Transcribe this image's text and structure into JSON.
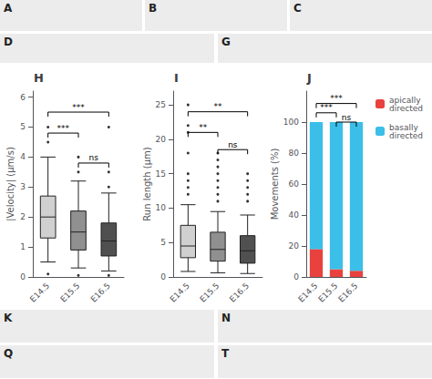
{
  "chart_data": [
    {
      "type": "boxplot",
      "title": "H",
      "ylabel": "|Velocity| (μm/s)",
      "categories": [
        "E14.5",
        "E15.5",
        "E16.5"
      ],
      "boxes": [
        {
          "med": 2.0,
          "q1": 1.3,
          "q3": 2.7,
          "whislo": 0.5,
          "whishi": 4.0,
          "fliers": [
            0.1,
            4.5,
            5.0
          ]
        },
        {
          "med": 1.5,
          "q1": 0.9,
          "q3": 2.2,
          "whislo": 0.3,
          "whishi": 3.2,
          "fliers": [
            0.05,
            3.5,
            4.0
          ]
        },
        {
          "med": 1.2,
          "q1": 0.7,
          "q3": 1.8,
          "whislo": 0.2,
          "whishi": 2.8,
          "fliers": [
            0.05,
            3.0,
            3.5,
            5.0
          ]
        }
      ],
      "colors": [
        "#d0d0d0",
        "#909090",
        "#505050"
      ],
      "ylim": [
        0,
        6.2
      ],
      "yticks": [
        0,
        1,
        2,
        3,
        4,
        5,
        6
      ],
      "grid": false,
      "brackets": [
        {
          "from": "E14.5",
          "to": "E15.5",
          "y": 4.8,
          "text": "***"
        },
        {
          "from": "E14.5",
          "to": "E16.5",
          "y": 5.5,
          "text": "***"
        },
        {
          "from": "E15.5",
          "to": "E16.5",
          "y": 3.8,
          "text": "ns"
        }
      ]
    },
    {
      "type": "boxplot",
      "title": "I",
      "ylabel": "Run length (μm)",
      "categories": [
        "E14.5",
        "E15.5",
        "E16.5"
      ],
      "boxes": [
        {
          "med": 4.5,
          "q1": 2.8,
          "q3": 7.5,
          "whislo": 0.8,
          "whishi": 10.5,
          "fliers": [
            12,
            13,
            14,
            15,
            18,
            21,
            22,
            25
          ]
        },
        {
          "med": 4.0,
          "q1": 2.3,
          "q3": 6.5,
          "whislo": 0.6,
          "whishi": 9.5,
          "fliers": [
            11,
            12,
            13,
            14,
            15,
            16,
            17,
            18
          ]
        },
        {
          "med": 3.8,
          "q1": 2.0,
          "q3": 6.0,
          "whislo": 0.5,
          "whishi": 9.0,
          "fliers": [
            11,
            12,
            13,
            14,
            15
          ]
        }
      ],
      "colors": [
        "#d0d0d0",
        "#909090",
        "#505050"
      ],
      "ylim": [
        0,
        27
      ],
      "yticks": [
        0,
        5,
        10,
        15,
        20,
        25
      ],
      "grid": false,
      "brackets": [
        {
          "from": "E14.5",
          "to": "E15.5",
          "y": 21,
          "text": "**"
        },
        {
          "from": "E14.5",
          "to": "E16.5",
          "y": 24,
          "text": "**"
        },
        {
          "from": "E15.5",
          "to": "E16.5",
          "y": 18.5,
          "text": "ns"
        }
      ]
    },
    {
      "type": "bar",
      "title": "J",
      "ylabel": "Movements (%)",
      "categories": [
        "E14.5",
        "E15.5",
        "E16.5"
      ],
      "series": [
        {
          "name": "apically\ndirected",
          "color": "#e8413e",
          "values": [
            18,
            5,
            4
          ]
        },
        {
          "name": "basally\ndirected",
          "color": "#3bbee8",
          "values": [
            82,
            95,
            96
          ]
        }
      ],
      "stacked": true,
      "legend": "right",
      "ylim": [
        0,
        120
      ],
      "yticks": [
        0,
        20,
        40,
        60,
        80,
        100
      ],
      "grid": false,
      "brackets": [
        {
          "from": "E14.5",
          "to": "E15.5",
          "y": 106,
          "text": "***"
        },
        {
          "from": "E14.5",
          "to": "E16.5",
          "y": 112,
          "text": "***"
        },
        {
          "from": "E15.5",
          "to": "E16.5",
          "y": 100,
          "text": "ns"
        }
      ]
    }
  ],
  "annotations": [
    "A",
    "B",
    "C",
    "D",
    "G",
    "K",
    "N",
    "Q",
    "T"
  ]
}
